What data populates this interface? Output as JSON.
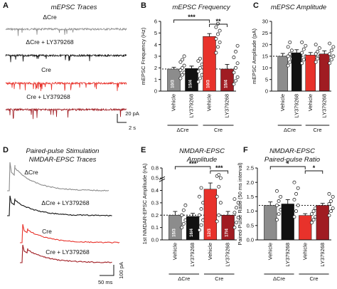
{
  "colors": {
    "dcre_vehicle": "#8c8c8c",
    "dcre_ly": "#111111",
    "cre_vehicle": "#e8322b",
    "cre_ly": "#a01c22",
    "dashed": "#000000"
  },
  "panels": {
    "A": {
      "letter": "A",
      "title": "mEPSC Traces",
      "labels": [
        "ΔCre",
        "ΔCre + LY379268",
        "Cre",
        "Cre + LY379268"
      ],
      "scale_y": "20 pA",
      "scale_x": "2 s"
    },
    "D": {
      "letter": "D",
      "title_line1": "Paired-pulse Stimulation",
      "title_line2": "NMDAR-EPSC Traces",
      "labels": [
        "ΔCre",
        "ΔCre + LY379268",
        "Cre",
        "Cre + LY379268"
      ],
      "scale_y": "100 pA",
      "scale_x": "50 ms"
    },
    "B": {
      "letter": "B",
      "title": "mEPSC Frequency"
    },
    "C": {
      "letter": "C",
      "title": "mEPSC Amplitude"
    },
    "E": {
      "letter": "E",
      "title_line1": "NMDAR-EPSC",
      "title_line2": "Amplitude"
    },
    "F": {
      "letter": "F",
      "title_line1": "NMDAR-EPSC",
      "title_line2": "Paired-pulse Ratio"
    }
  },
  "chart_data": [
    {
      "panel": "B",
      "type": "bar",
      "title": "mEPSC Frequency",
      "ylabel": "mEPSC Frequency (Hz)",
      "ylim": [
        0,
        6
      ],
      "yticks": [
        "0",
        "1",
        "2",
        "3",
        "4",
        "5",
        "6"
      ],
      "categories": [
        "Vehicle",
        "LY379268",
        "Vehicle",
        "LY379268"
      ],
      "groups": [
        "ΔCre",
        "Cre"
      ],
      "values": [
        1.9,
        1.95,
        4.7,
        1.9
      ],
      "errors": [
        0.15,
        0.2,
        0.25,
        0.4
      ],
      "n_labels": [
        "10/3",
        "15/4",
        "10/3",
        "15/4"
      ],
      "points": [
        [
          1.1,
          1.4,
          1.6,
          1.8,
          2.0,
          2.2,
          2.5,
          2.7,
          3.0
        ],
        [
          0.8,
          1.1,
          1.4,
          1.7,
          2.0,
          2.3,
          2.6,
          2.8
        ],
        [
          3.3,
          3.8,
          4.2,
          4.5,
          4.9,
          5.2,
          5.5,
          5.8
        ],
        [
          0.6,
          0.9,
          1.2,
          1.6,
          2.0,
          2.4,
          2.9,
          3.4,
          3.9
        ]
      ],
      "reference_line": 1.9,
      "significance": [
        {
          "label": "***",
          "from": 0,
          "to": 2
        },
        {
          "label": "**",
          "from": 2,
          "to": 3
        }
      ]
    },
    {
      "panel": "C",
      "type": "bar",
      "title": "mEPSC Amplitude",
      "ylabel": "mEPSC Amplitude (pA)",
      "ylim": [
        0,
        30
      ],
      "yticks": [
        "0",
        "5",
        "10",
        "15",
        "20",
        "25",
        "30"
      ],
      "categories": [
        "Vehicle",
        "LY379268",
        "Vehicle",
        "LY379268"
      ],
      "groups": [
        "ΔCre",
        "Cre"
      ],
      "values": [
        15.0,
        16.5,
        15.5,
        16.0
      ],
      "errors": [
        1.2,
        1.3,
        1.1,
        1.3
      ],
      "points": [
        [
          11,
          12.5,
          14,
          15,
          16,
          17.5,
          19,
          21
        ],
        [
          12,
          13.5,
          15,
          16.5,
          18,
          19.5,
          21
        ],
        [
          12.5,
          14,
          15,
          16,
          17,
          18.5,
          20
        ],
        [
          12,
          13.5,
          15,
          16,
          17.5,
          19,
          20.5
        ]
      ],
      "reference_line": 15.0
    },
    {
      "panel": "E",
      "type": "bar",
      "title": "NMDAR-EPSC Amplitude",
      "ylabel": "1st NMDAR-EPSC Amplitude (nA)",
      "ylim": [
        0,
        0.8
      ],
      "yticks": [
        "0.0",
        "0.1",
        "0.2",
        "0.3",
        "0.4",
        "0.5",
        "0.8"
      ],
      "categories": [
        "Vehicle",
        "LY379268",
        "Vehicle",
        "LY379268"
      ],
      "groups": [
        "ΔCre",
        "Cre"
      ],
      "values": [
        0.2,
        0.19,
        0.41,
        0.2
      ],
      "errors": [
        0.03,
        0.025,
        0.05,
        0.03
      ],
      "n_labels": [
        "15/3",
        "16/4",
        "12/3",
        "17/4"
      ],
      "points": [
        [
          0.1,
          0.13,
          0.16,
          0.2,
          0.24,
          0.28
        ],
        [
          0.08,
          0.12,
          0.16,
          0.2,
          0.25,
          0.3,
          0.35,
          0.42
        ],
        [
          0.15,
          0.2,
          0.3,
          0.35,
          0.43,
          0.5,
          0.56,
          0.6
        ],
        [
          0.1,
          0.14,
          0.18,
          0.22,
          0.26,
          0.3,
          0.33
        ]
      ],
      "reference_line": 0.2,
      "significance": [
        {
          "label": "***",
          "from": 0,
          "to": 2
        },
        {
          "label": "***",
          "from": 2,
          "to": 3
        }
      ]
    },
    {
      "panel": "F",
      "type": "bar",
      "title": "NMDAR-EPSC Paired-pulse Ratio",
      "ylabel": "Paired-Pulse Ratio (50 ms interval)",
      "ylim": [
        0,
        2.5
      ],
      "yticks": [
        "0.0",
        "0.5",
        "1.0",
        "1.5",
        "2.0",
        "2.5"
      ],
      "categories": [
        "Vehicle",
        "LY379268",
        "Vehicle",
        "LY379268"
      ],
      "groups": [
        "ΔCre",
        "Cre"
      ],
      "values": [
        1.2,
        1.25,
        0.85,
        1.2
      ],
      "errors": [
        0.12,
        0.15,
        0.06,
        0.07
      ],
      "points": [
        [
          0.7,
          0.9,
          1.05,
          1.2,
          1.35,
          1.5,
          1.7
        ],
        [
          0.8,
          1.0,
          1.2,
          1.4,
          1.6,
          1.8,
          2.0
        ],
        [
          0.6,
          0.7,
          0.8,
          0.9,
          1.0,
          1.1
        ],
        [
          0.85,
          1.0,
          1.1,
          1.25,
          1.35,
          1.5,
          1.6
        ]
      ],
      "reference_line": 1.2,
      "significance": [
        {
          "label": "*",
          "from": 0,
          "to": 2
        },
        {
          "label": "*",
          "from": 2,
          "to": 3
        }
      ]
    }
  ]
}
